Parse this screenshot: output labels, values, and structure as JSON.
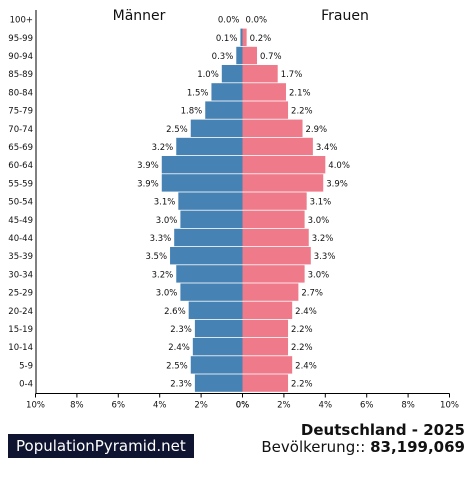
{
  "chart_data": {
    "type": "bar",
    "title": "",
    "left_label": "Männer",
    "right_label": "Frauen",
    "categories": [
      "100+",
      "95-99",
      "90-94",
      "85-89",
      "80-84",
      "75-79",
      "70-74",
      "65-69",
      "60-64",
      "55-59",
      "50-54",
      "45-49",
      "40-44",
      "35-39",
      "30-34",
      "25-29",
      "20-24",
      "15-19",
      "10-14",
      "5-9",
      "0-4"
    ],
    "series": [
      {
        "name": "Männer",
        "values": [
          0.0,
          0.1,
          0.3,
          1.0,
          1.5,
          1.8,
          2.5,
          3.2,
          3.9,
          3.9,
          3.1,
          3.0,
          3.3,
          3.5,
          3.2,
          3.0,
          2.6,
          2.3,
          2.4,
          2.5,
          2.3
        ],
        "labels": [
          "0.0%",
          "0.1%",
          "0.3%",
          "1.0%",
          "1.5%",
          "1.8%",
          "2.5%",
          "3.2%",
          "3.9%",
          "3.9%",
          "3.1%",
          "3.0%",
          "3.3%",
          "3.5%",
          "3.2%",
          "3.0%",
          "2.6%",
          "2.3%",
          "2.4%",
          "2.5%",
          "2.3%"
        ]
      },
      {
        "name": "Frauen",
        "values": [
          0.0,
          0.2,
          0.7,
          1.7,
          2.1,
          2.2,
          2.9,
          3.4,
          4.0,
          3.9,
          3.1,
          3.0,
          3.2,
          3.3,
          3.0,
          2.7,
          2.4,
          2.2,
          2.2,
          2.4,
          2.2
        ],
        "labels": [
          "0.0%",
          "0.2%",
          "0.7%",
          "1.7%",
          "2.1%",
          "2.2%",
          "2.9%",
          "3.4%",
          "4.0%",
          "3.9%",
          "3.1%",
          "3.0%",
          "3.2%",
          "3.3%",
          "3.0%",
          "2.7%",
          "2.4%",
          "2.2%",
          "2.2%",
          "2.4%",
          "2.2%"
        ]
      }
    ],
    "xlim": [
      -10,
      10
    ],
    "x_ticks_left": [
      "10%",
      "8%",
      "6%",
      "4%",
      "2%",
      "0%"
    ],
    "x_ticks_right": [
      "0%",
      "2%",
      "4%",
      "6%",
      "8%",
      "10%"
    ],
    "colors": {
      "male": "#4682b4",
      "female": "#ef7a8a",
      "axis": "#000000"
    },
    "grid": false
  },
  "footer": {
    "country_year": "Deutschland - 2025",
    "population_label": "Bevölkerung:: ",
    "population_value": "83,199,069"
  },
  "brand": {
    "text": "PopulationPyramid.net"
  }
}
